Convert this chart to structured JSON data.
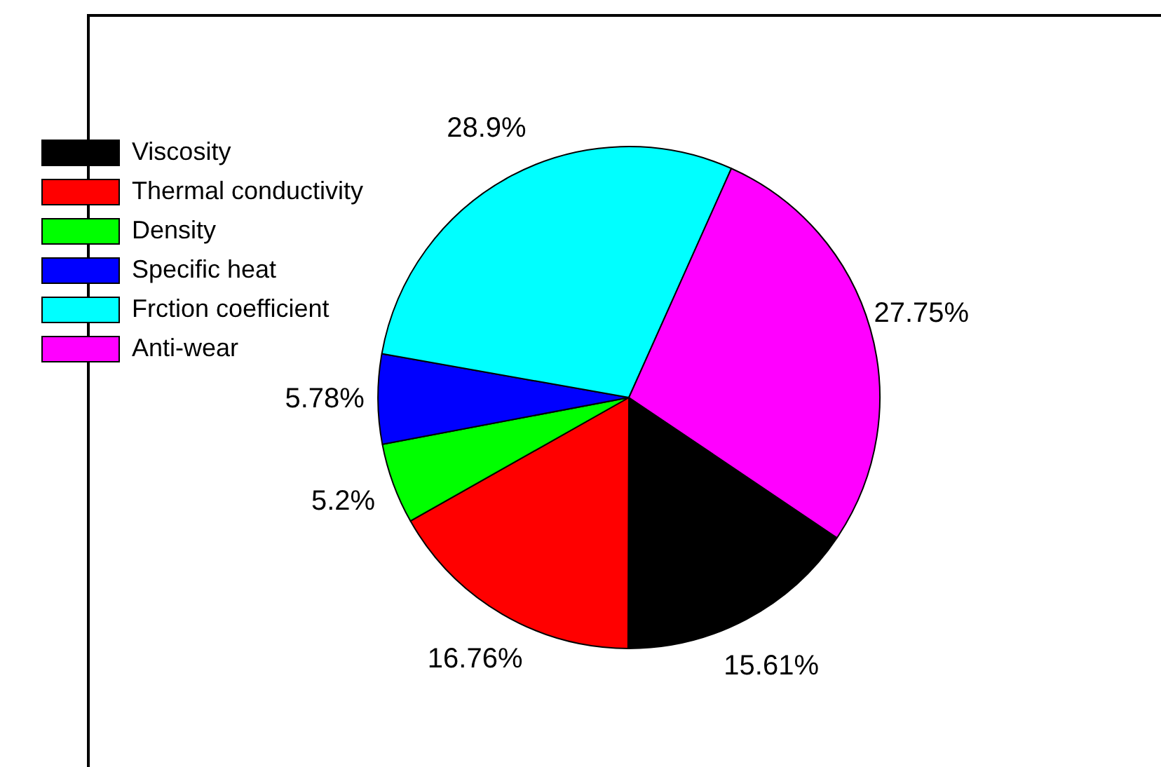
{
  "chart_data": {
    "type": "pie",
    "categories": [
      "Viscosity",
      "Thermal conductivity",
      "Density",
      "Specific heat",
      "Frction coefficient",
      "Anti-wear"
    ],
    "values": [
      15.61,
      16.76,
      5.2,
      5.78,
      28.9,
      27.75
    ],
    "colors": [
      "#000000",
      "#ff0000",
      "#00ff00",
      "#0000ff",
      "#00ffff",
      "#ff00ff"
    ],
    "value_labels": [
      "15.61%",
      "16.76%",
      "5.2%",
      "5.78%",
      "28.9%",
      "27.75%"
    ],
    "legend": "top left"
  }
}
